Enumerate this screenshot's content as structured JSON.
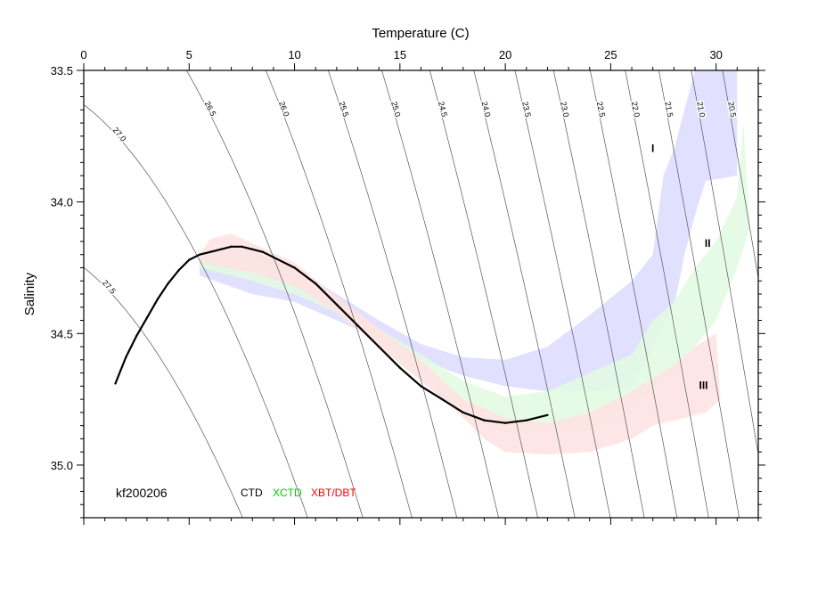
{
  "chart_data": {
    "type": "scatter",
    "xlabel": "Temperature (C)",
    "ylabel": "Salinity",
    "xlim": [
      0,
      32
    ],
    "ylim": [
      35.2,
      33.5
    ],
    "x_ticks": [
      "0",
      "5",
      "10",
      "15",
      "20",
      "25",
      "30"
    ],
    "y_ticks": [
      "33.5",
      "34.0",
      "34.5",
      "35.0"
    ],
    "cruise_label": "kf200206",
    "legend": [
      {
        "label": "CTD",
        "color": "#000000"
      },
      {
        "label": "XCTD",
        "color": "#00cc00"
      },
      {
        "label": "XBT/DBT",
        "color": "#ff0000"
      }
    ],
    "isopycnals": [
      {
        "label": "27.5",
        "sigma": 27.5
      },
      {
        "label": "27.0",
        "sigma": 27.0
      },
      {
        "label": "26.5",
        "sigma": 26.5
      },
      {
        "label": "26.0",
        "sigma": 26.0
      },
      {
        "label": "25.5",
        "sigma": 25.5
      },
      {
        "label": "25.0",
        "sigma": 25.0
      },
      {
        "label": "24.5",
        "sigma": 24.5
      },
      {
        "label": "24.0",
        "sigma": 24.0
      },
      {
        "label": "23.5",
        "sigma": 23.5
      },
      {
        "label": "23.0",
        "sigma": 23.0
      },
      {
        "label": "22.5",
        "sigma": 22.5
      },
      {
        "label": "22.0",
        "sigma": 22.0
      },
      {
        "label": "21.5",
        "sigma": 21.5
      },
      {
        "label": "21.0",
        "sigma": 21.0
      },
      {
        "label": "20.5",
        "sigma": 20.5
      }
    ],
    "regions": [
      {
        "name": "I",
        "color": "#dcdcff",
        "label_at": [
          27,
          33.81
        ],
        "upper": [
          [
            5.5,
            34.2
          ],
          [
            7,
            34.16
          ],
          [
            10,
            34.25
          ],
          [
            12,
            34.35
          ],
          [
            14,
            34.45
          ],
          [
            16,
            34.54
          ],
          [
            18,
            34.59
          ],
          [
            20,
            34.6
          ],
          [
            22,
            34.55
          ],
          [
            24,
            34.43
          ],
          [
            26,
            34.3
          ],
          [
            27,
            34.2
          ],
          [
            27.5,
            33.9
          ],
          [
            28,
            33.8
          ],
          [
            28.5,
            33.65
          ],
          [
            29,
            33.5
          ]
        ],
        "lower": [
          [
            5.5,
            34.28
          ],
          [
            8,
            34.35
          ],
          [
            10,
            34.38
          ],
          [
            12,
            34.45
          ],
          [
            14,
            34.52
          ],
          [
            16,
            34.6
          ],
          [
            18,
            34.66
          ],
          [
            20,
            34.7
          ],
          [
            22,
            34.72
          ],
          [
            24,
            34.72
          ],
          [
            26,
            34.7
          ],
          [
            27,
            34.55
          ],
          [
            28,
            34.4
          ],
          [
            28.5,
            34.2
          ],
          [
            29,
            34.05
          ],
          [
            29.5,
            33.92
          ],
          [
            31,
            33.9
          ],
          [
            31,
            33.5
          ]
        ]
      },
      {
        "name": "II",
        "color": "#e2fae2",
        "label_at": [
          29.6,
          34.17
        ],
        "upper": [
          [
            5.5,
            34.18
          ],
          [
            7,
            34.17
          ],
          [
            10,
            34.27
          ],
          [
            12,
            34.38
          ],
          [
            14,
            34.48
          ],
          [
            16,
            34.58
          ],
          [
            18,
            34.68
          ],
          [
            20,
            34.74
          ],
          [
            22,
            34.72
          ],
          [
            24,
            34.65
          ],
          [
            26,
            34.58
          ],
          [
            27,
            34.45
          ],
          [
            28,
            34.38
          ],
          [
            29,
            34.25
          ],
          [
            30,
            34.15
          ],
          [
            31,
            33.98
          ],
          [
            31.3,
            33.7
          ]
        ],
        "lower": [
          [
            5.5,
            34.25
          ],
          [
            8,
            34.3
          ],
          [
            10,
            34.35
          ],
          [
            12,
            34.42
          ],
          [
            14,
            34.55
          ],
          [
            16,
            34.68
          ],
          [
            18,
            34.82
          ],
          [
            20,
            34.88
          ],
          [
            22,
            34.88
          ],
          [
            24,
            34.87
          ],
          [
            26,
            34.78
          ],
          [
            27,
            34.72
          ],
          [
            28,
            34.65
          ],
          [
            29,
            34.55
          ],
          [
            30,
            34.45
          ],
          [
            31,
            34.25
          ],
          [
            31.6,
            34.1
          ]
        ]
      },
      {
        "name": "III",
        "color": "#ffe2e2",
        "label_at": [
          29.4,
          34.71
        ],
        "upper": [
          [
            5.5,
            34.2
          ],
          [
            6,
            34.14
          ],
          [
            7,
            34.12
          ],
          [
            10,
            34.23
          ],
          [
            12,
            34.36
          ],
          [
            14,
            34.48
          ],
          [
            16,
            34.6
          ],
          [
            18,
            34.75
          ],
          [
            20,
            34.82
          ],
          [
            22,
            34.84
          ],
          [
            24,
            34.8
          ],
          [
            26,
            34.72
          ],
          [
            28,
            34.62
          ],
          [
            29,
            34.55
          ],
          [
            30,
            34.5
          ]
        ],
        "lower": [
          [
            5.5,
            34.23
          ],
          [
            8,
            34.27
          ],
          [
            10,
            34.32
          ],
          [
            12,
            34.42
          ],
          [
            14,
            34.55
          ],
          [
            16,
            34.68
          ],
          [
            18,
            34.82
          ],
          [
            19,
            34.9
          ],
          [
            20,
            34.95
          ],
          [
            22,
            34.96
          ],
          [
            24,
            34.95
          ],
          [
            26,
            34.9
          ],
          [
            27,
            34.85
          ],
          [
            28,
            34.83
          ],
          [
            29.5,
            34.8
          ],
          [
            30.2,
            34.75
          ]
        ]
      }
    ],
    "series": [
      {
        "name": "CTD",
        "color": "#000000",
        "x": [
          1.5,
          2.0,
          2.5,
          3.0,
          3.5,
          4.0,
          4.5,
          5.0,
          5.5,
          6.0,
          6.5,
          7.0,
          7.5,
          8.0,
          8.5,
          9.0,
          10.0,
          11.0,
          12.0,
          13.0,
          14.0,
          15.0,
          16.0,
          17.0,
          18.0,
          19.0,
          20.0,
          21.0,
          22.0
        ],
        "y": [
          34.69,
          34.59,
          34.51,
          34.44,
          34.37,
          34.31,
          34.26,
          34.22,
          34.2,
          34.19,
          34.18,
          34.17,
          34.17,
          34.18,
          34.19,
          34.21,
          34.25,
          34.31,
          34.39,
          34.47,
          34.55,
          34.63,
          34.7,
          34.75,
          34.8,
          34.83,
          34.84,
          34.83,
          34.81
        ]
      }
    ]
  }
}
